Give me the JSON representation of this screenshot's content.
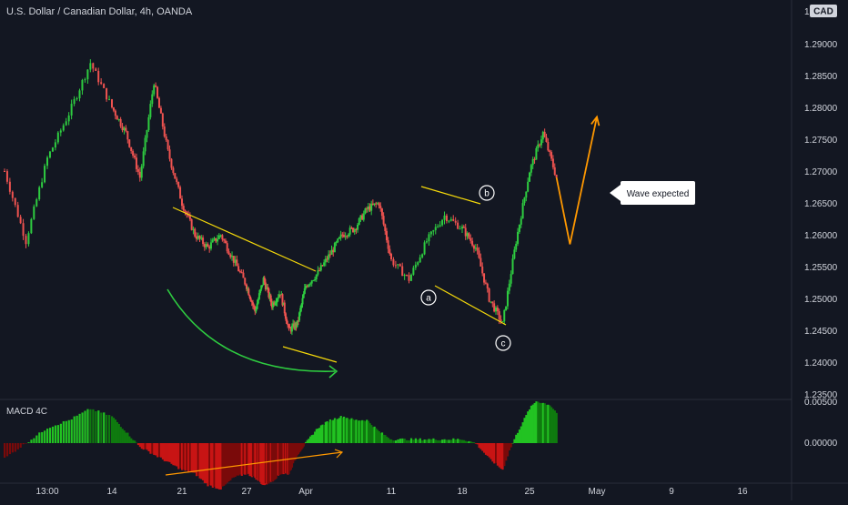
{
  "header": {
    "title": "U.S. Dollar / Canadian Dollar, 4h, OANDA",
    "currency_badge": "CAD",
    "price_cut": "1."
  },
  "macd": {
    "label": "MACD 4C"
  },
  "annotations": {
    "wave_callout": "Wave expected",
    "wave_labels": [
      "a",
      "b",
      "c"
    ]
  },
  "colors": {
    "background": "#131722",
    "grid": "#2a2e39",
    "bull": "#26a69a",
    "bull_bright": "#2ecc40",
    "bear": "#ef5350",
    "macd_up": "#22c322",
    "macd_down": "#c81414",
    "pattern_line": "#f5d90a",
    "forecast_line": "#ff9800",
    "arc": "#2ecc40",
    "text": "#d1d4dc"
  },
  "chart_data": [
    {
      "type": "candlestick",
      "title": "U.S. Dollar / Canadian Dollar, 4h, OANDA",
      "x_ticks": [
        "13:00",
        "14",
        "21",
        "27",
        "Apr",
        "11",
        "18",
        "25",
        "May",
        "9",
        "16"
      ],
      "y_ticks": [
        "1.29000",
        "1.28500",
        "1.28000",
        "1.27500",
        "1.27000",
        "1.26500",
        "1.26000",
        "1.25500",
        "1.25000",
        "1.24500",
        "1.24000",
        "1.23500"
      ],
      "ylim": [
        1.235,
        1.2935
      ],
      "close_path": [
        [
          0,
          1.27
        ],
        [
          2,
          1.259
        ],
        [
          4,
          1.272
        ],
        [
          6,
          1.279
        ],
        [
          8,
          1.287
        ],
        [
          10,
          1.28
        ],
        [
          12,
          1.276
        ],
        [
          14,
          1.269
        ],
        [
          16,
          1.284
        ],
        [
          18,
          1.273
        ],
        [
          20,
          1.265
        ],
        [
          22,
          1.26
        ],
        [
          24,
          1.258
        ],
        [
          26,
          1.26
        ],
        [
          28,
          1.256
        ],
        [
          30,
          1.252
        ],
        [
          32,
          1.248
        ],
        [
          34,
          1.253
        ],
        [
          36,
          1.249
        ],
        [
          38,
          1.251
        ],
        [
          40,
          1.245
        ],
        [
          42,
          1.246
        ],
        [
          44,
          1.252
        ],
        [
          46,
          1.254
        ],
        [
          48,
          1.257
        ],
        [
          50,
          1.26
        ],
        [
          52,
          1.261
        ],
        [
          54,
          1.264
        ],
        [
          56,
          1.265
        ],
        [
          58,
          1.256
        ],
        [
          60,
          1.253
        ],
        [
          62,
          1.259
        ],
        [
          64,
          1.263
        ],
        [
          66,
          1.261
        ],
        [
          68,
          1.258
        ],
        [
          70,
          1.25
        ],
        [
          72,
          1.246
        ],
        [
          74,
          1.259
        ],
        [
          76,
          1.27
        ],
        [
          78,
          1.276
        ],
        [
          80,
          1.269
        ]
      ],
      "forecast": [
        [
          80,
          1.269
        ],
        [
          82,
          1.2585
        ],
        [
          86,
          1.2785
        ]
      ],
      "macd_histogram_profile": [
        [
          0,
          -0.0004
        ],
        [
          4,
          0.0004
        ],
        [
          6,
          0.0006
        ],
        [
          8,
          0.0009
        ],
        [
          10,
          0.0007
        ],
        [
          12,
          0.0003
        ],
        [
          14,
          -0.0001
        ],
        [
          16,
          -0.0003
        ],
        [
          18,
          -0.0005
        ],
        [
          20,
          -0.0007
        ],
        [
          22,
          -0.0008
        ],
        [
          24,
          -0.0011
        ],
        [
          26,
          -0.0012
        ],
        [
          28,
          -0.0009
        ],
        [
          30,
          -0.0008
        ],
        [
          32,
          -0.0009
        ],
        [
          34,
          -0.0011
        ],
        [
          36,
          -0.001
        ],
        [
          38,
          -0.0008
        ],
        [
          40,
          -0.0008
        ],
        [
          42,
          -0.0003
        ],
        [
          44,
          0.0
        ],
        [
          46,
          0.0004
        ],
        [
          48,
          0.0006
        ],
        [
          50,
          0.0007
        ],
        [
          52,
          0.0006
        ],
        [
          54,
          0.0006
        ],
        [
          56,
          0.0003
        ],
        [
          58,
          0.0001
        ],
        [
          60,
          0.0001
        ],
        [
          62,
          0.0001
        ],
        [
          64,
          0.0001
        ],
        [
          66,
          0.0001
        ],
        [
          68,
          0.0
        ],
        [
          70,
          -0.0004
        ],
        [
          72,
          -0.0007
        ],
        [
          73,
          -0.0002
        ],
        [
          74,
          0.0002
        ],
        [
          76,
          0.0009
        ],
        [
          77,
          0.0011
        ],
        [
          79,
          0.001
        ],
        [
          80,
          0.0008
        ]
      ],
      "macd_y_ticks": [
        "0.00500",
        "0.00000"
      ]
    }
  ]
}
